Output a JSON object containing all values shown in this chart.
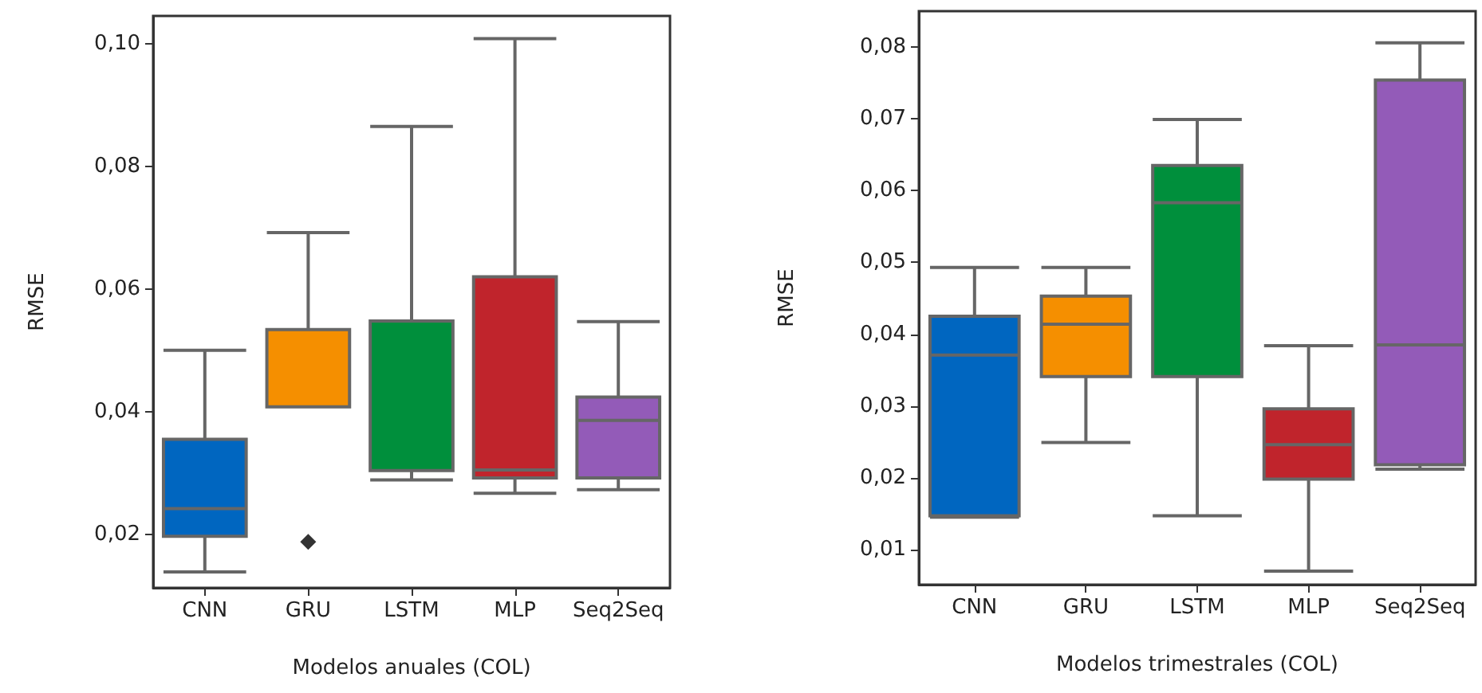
{
  "chart_data": [
    {
      "type": "box",
      "xlabel": "Modelos anuales (COL)",
      "ylabel": "RMSE",
      "categories": [
        "CNN",
        "GRU",
        "LSTM",
        "MLP",
        "Seq2Seq"
      ],
      "colors": [
        "#0066c0",
        "#f58f00",
        "#008f3c",
        "#c0242c",
        "#935bb8"
      ],
      "boxes": [
        {
          "low": 0.0139,
          "q1": 0.0197,
          "median": 0.0242,
          "q3": 0.0355,
          "high": 0.05
        },
        {
          "low": 0.0408,
          "q1": 0.0408,
          "median": 0.0408,
          "q3": 0.0534,
          "high": 0.0692,
          "outliers": [
            0.0188
          ]
        },
        {
          "low": 0.0289,
          "q1": 0.0304,
          "median": 0.0304,
          "q3": 0.0548,
          "high": 0.0865
        },
        {
          "low": 0.0267,
          "q1": 0.0292,
          "median": 0.0305,
          "q3": 0.062,
          "high": 0.1008
        },
        {
          "low": 0.0273,
          "q1": 0.0292,
          "median": 0.0386,
          "q3": 0.0424,
          "high": 0.0547
        }
      ],
      "ylim": [
        0.0113,
        0.1045
      ],
      "yticks": [
        {
          "value": 0.02,
          "label": "0,02"
        },
        {
          "value": 0.04,
          "label": "0,04"
        },
        {
          "value": 0.06,
          "label": "0,06"
        },
        {
          "value": 0.08,
          "label": "0,08"
        },
        {
          "value": 0.1,
          "label": "0,10"
        }
      ],
      "grid": false,
      "marker": "diamond"
    },
    {
      "type": "box",
      "xlabel": "Modelos trimestrales (COL)",
      "ylabel": "RMSE",
      "categories": [
        "CNN",
        "GRU",
        "LSTM",
        "MLP",
        "Seq2Seq"
      ],
      "colors": [
        "#0066c0",
        "#f58f00",
        "#008f3c",
        "#c0242c",
        "#935bb8"
      ],
      "boxes": [
        {
          "low": 0.0145,
          "q1": 0.0147,
          "median": 0.0371,
          "q3": 0.0425,
          "high": 0.0493
        },
        {
          "low": 0.0249,
          "q1": 0.0341,
          "median": 0.0414,
          "q3": 0.0453,
          "high": 0.0493
        },
        {
          "low": 0.0147,
          "q1": 0.0341,
          "median": 0.0583,
          "q3": 0.0635,
          "high": 0.0699
        },
        {
          "low": 0.007,
          "q1": 0.0198,
          "median": 0.0246,
          "q3": 0.0296,
          "high": 0.0384
        },
        {
          "low": 0.0212,
          "q1": 0.0218,
          "median": 0.0385,
          "q3": 0.0754,
          "high": 0.0806
        }
      ],
      "ylim": [
        0.0051,
        0.085
      ],
      "yticks": [
        {
          "value": 0.01,
          "label": "0,01"
        },
        {
          "value": 0.02,
          "label": "0,02"
        },
        {
          "value": 0.03,
          "label": "0,03"
        },
        {
          "value": 0.04,
          "label": "0,04"
        },
        {
          "value": 0.05,
          "label": "0,05"
        },
        {
          "value": 0.06,
          "label": "0,06"
        },
        {
          "value": 0.07,
          "label": "0,07"
        },
        {
          "value": 0.08,
          "label": "0,08"
        }
      ],
      "grid": false
    }
  ]
}
